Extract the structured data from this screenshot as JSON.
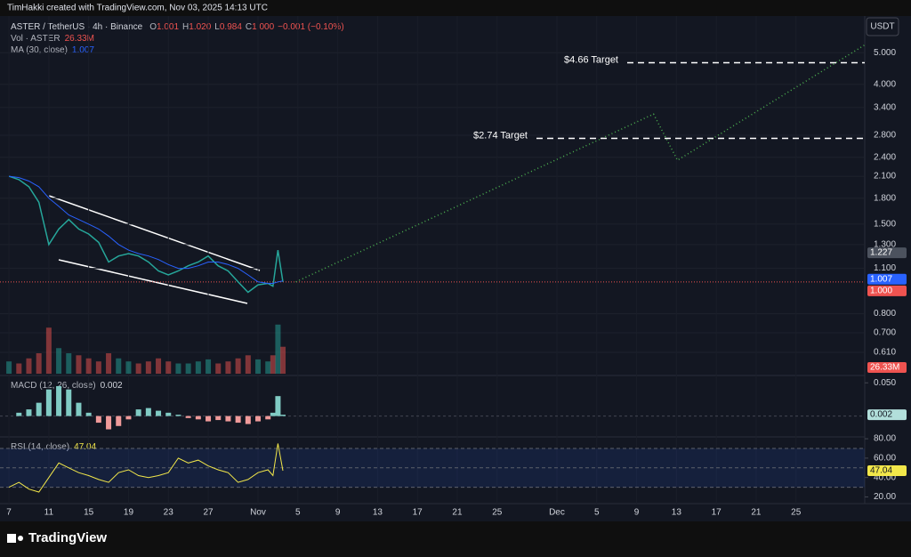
{
  "header": {
    "attribution": "TimHakki created with TradingView.com, Nov 03, 2025 14:13 UTC"
  },
  "footer": {
    "brand": "TradingView"
  },
  "chart_data": {
    "type": "line",
    "symbol": "ASTER / TetherUS · 4h · Binance",
    "ohlc": [
      {
        "label": "O",
        "value": "1.001"
      },
      {
        "label": "H",
        "value": "1.020"
      },
      {
        "label": "L",
        "value": "0.984"
      },
      {
        "label": "C",
        "value": "1.000"
      }
    ],
    "change": "−0.001 (−0.10%)",
    "currency": "USDT",
    "log_scale": true,
    "grid": true,
    "up_color": "#26a69a",
    "down_color": "#ef5350",
    "xlim": [
      6.1,
      92.9
    ],
    "xticks": [
      7,
      11,
      15,
      19,
      23,
      27,
      {
        "value": 32,
        "label": "Nov"
      },
      {
        "value": 36,
        "label": "5"
      },
      {
        "value": 40,
        "label": "9"
      },
      {
        "value": 44,
        "label": "13"
      },
      {
        "value": 48,
        "label": "17"
      },
      {
        "value": 52,
        "label": "21"
      },
      {
        "value": 56,
        "label": "25"
      },
      {
        "value": 62,
        "label": "Dec"
      },
      {
        "value": 66,
        "label": "5"
      },
      {
        "value": 70,
        "label": "9"
      },
      {
        "value": 74,
        "label": "13"
      },
      {
        "value": 78,
        "label": "17"
      },
      {
        "value": 82,
        "label": "21"
      },
      {
        "value": 86,
        "label": "25"
      }
    ],
    "ylim": [
      0.525,
      6.0
    ],
    "yticks": [
      {
        "value": 5,
        "label": "5.000"
      },
      {
        "value": 4,
        "label": "4.000"
      },
      {
        "value": 3.4,
        "label": "3.400"
      },
      {
        "value": 2.8,
        "label": "2.800"
      },
      {
        "value": 2.4,
        "label": "2.400"
      },
      {
        "value": 2.1,
        "label": "2.100"
      },
      {
        "value": 1.8,
        "label": "1.800"
      },
      {
        "value": 1.5,
        "label": "1.500"
      },
      {
        "value": 1.3,
        "label": "1.300"
      },
      {
        "value": 1.1,
        "label": "1.100"
      },
      {
        "value": 0.8,
        "label": "0.800"
      },
      {
        "value": 0.7,
        "label": "0.700"
      },
      {
        "value": 0.61,
        "label": "0.610"
      }
    ],
    "x": [
      7,
      8,
      9,
      10,
      11,
      12,
      13,
      14,
      15,
      16,
      17,
      18,
      19,
      20,
      21,
      22,
      23,
      24,
      25,
      26,
      27,
      28,
      29,
      30,
      31,
      32,
      33,
      33.5,
      34,
      34.5
    ],
    "series": [
      {
        "color": "#26a69a",
        "values": [
          2.1,
          2.05,
          1.95,
          1.75,
          1.3,
          1.45,
          1.55,
          1.45,
          1.4,
          1.32,
          1.15,
          1.2,
          1.22,
          1.2,
          1.15,
          1.08,
          1.05,
          1.08,
          1.12,
          1.15,
          1.2,
          1.12,
          1.08,
          1.0,
          0.93,
          0.98,
          0.99,
          0.97,
          1.25,
          1.0
        ]
      },
      {
        "color": "#2962ff",
        "values": [
          2.1,
          2.08,
          2.03,
          1.95,
          1.8,
          1.7,
          1.6,
          1.55,
          1.5,
          1.45,
          1.38,
          1.3,
          1.25,
          1.22,
          1.2,
          1.17,
          1.13,
          1.1,
          1.1,
          1.12,
          1.15,
          1.15,
          1.13,
          1.1,
          1.05,
          1.0,
          0.99,
          0.99,
          1.0,
          1.007
        ]
      }
    ],
    "ma": {
      "label": "MA (30, close)",
      "value": 1.007
    },
    "price_badges": [
      {
        "value": 1.227,
        "color": "#4c525e"
      },
      {
        "value": 1,
        "label": "1.000",
        "color": "#ef5350"
      }
    ],
    "targets": [
      {
        "label": "$4.66 Target",
        "value": 4.66
      },
      {
        "label": "$2.74 Target",
        "value": 2.74
      }
    ],
    "projection": {
      "color": "#4caf50",
      "x": [
        35.8,
        71.7,
        74.1,
        92.9
      ],
      "values": [
        1.0,
        3.25,
        2.35,
        5.28
      ]
    },
    "volume": {
      "label": "Vol · ASTER",
      "badge": {
        "value": 26.33,
        "label": "26.33M"
      },
      "values": [
        12,
        10,
        15,
        20,
        45,
        25,
        20,
        18,
        15,
        12,
        20,
        15,
        12,
        10,
        12,
        15,
        12,
        10,
        10,
        12,
        14,
        10,
        12,
        15,
        18,
        14,
        12,
        18,
        48,
        26.33
      ]
    },
    "macd": {
      "label": "MACD (12, 26, close)",
      "value": 0.002,
      "ylim": [
        -0.03,
        0.057
      ],
      "yticks": [
        {
          "value": 0.05,
          "label": "0.050"
        }
      ],
      "values": [
        0,
        0.005,
        0.01,
        0.02,
        0.04,
        0.045,
        0.04,
        0.02,
        0.005,
        -0.01,
        -0.02,
        -0.015,
        -0.005,
        0.01,
        0.012,
        0.008,
        0.005,
        0.002,
        -0.003,
        -0.005,
        -0.008,
        -0.006,
        -0.008,
        -0.01,
        -0.012,
        -0.008,
        -0.005,
        0.005,
        0.03,
        0.002
      ]
    },
    "rsi": {
      "label": "RSI (14, close)",
      "value": 47.04,
      "color": "#f2e74a",
      "ylim": [
        14,
        81
      ],
      "bands": [
        70,
        50,
        30
      ],
      "yticks": [
        {
          "value": 80,
          "label": "80.00"
        },
        {
          "value": 60,
          "label": "60.00"
        },
        {
          "value": 40,
          "label": "40.00"
        },
        {
          "value": 20,
          "label": "20.00"
        }
      ],
      "values": [
        30,
        35,
        28,
        25,
        40,
        55,
        50,
        45,
        42,
        38,
        35,
        45,
        48,
        42,
        40,
        42,
        45,
        60,
        55,
        58,
        52,
        48,
        45,
        35,
        38,
        45,
        48,
        42,
        75,
        47.04
      ]
    }
  }
}
